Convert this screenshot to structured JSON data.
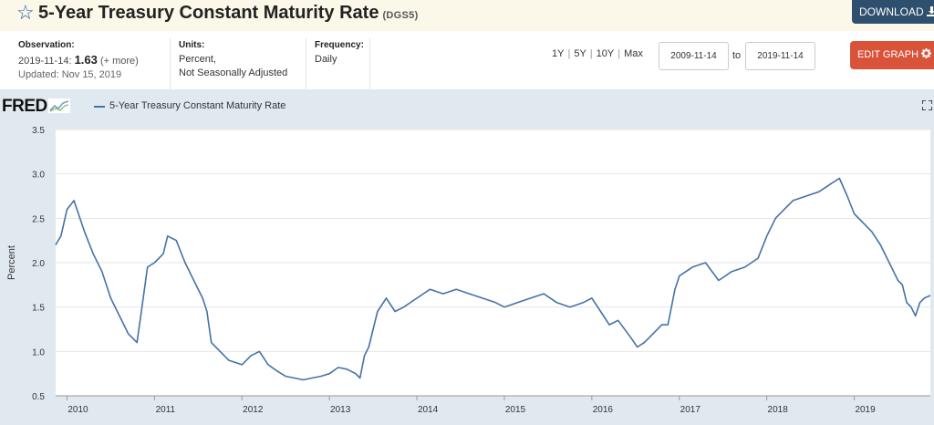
{
  "header": {
    "title": "5-Year Treasury Constant Maturity Rate",
    "series_id": "(DGS5)",
    "download_label": "DOWNLOAD",
    "star_icon": "star-outline-icon",
    "download_icon": "download-icon"
  },
  "meta": {
    "observation_label": "Observation:",
    "observation_date": "2019-11-14:",
    "observation_value": "1.63",
    "observation_more": "(+ more)",
    "updated": "Updated: Nov 15, 2019",
    "units_label": "Units:",
    "units_line1": "Percent,",
    "units_line2": "Not Seasonally Adjusted",
    "frequency_label": "Frequency:",
    "frequency_value": "Daily"
  },
  "controls": {
    "ranges": [
      "1Y",
      "5Y",
      "10Y",
      "Max"
    ],
    "start_date": "2009-11-14",
    "to_label": "to",
    "end_date": "2019-11-14",
    "edit_label": "EDIT GRAPH",
    "edit_icon": "gear-icon"
  },
  "graph": {
    "logo": "FRED",
    "logo_icon": "fred-chart-icon",
    "expand_icon": "expand-icon"
  },
  "chart_data": {
    "type": "line",
    "ylabel": "Percent",
    "ylim": [
      0.5,
      3.5
    ],
    "yticks": [
      "0.5",
      "1.0",
      "1.5",
      "2.0",
      "2.5",
      "3.0",
      "3.5"
    ],
    "xlim": [
      2009.87,
      2019.87
    ],
    "xticks": [
      "2010",
      "2011",
      "2012",
      "2013",
      "2014",
      "2015",
      "2016",
      "2017",
      "2018",
      "2019"
    ],
    "grid": "horizontal",
    "series": [
      {
        "name": "5-Year Treasury Constant Maturity Rate",
        "color": "#4572a7",
        "x": [
          2009.87,
          2009.93,
          2010.0,
          2010.08,
          2010.2,
          2010.3,
          2010.4,
          2010.5,
          2010.6,
          2010.7,
          2010.8,
          2010.85,
          2010.92,
          2011.0,
          2011.1,
          2011.15,
          2011.25,
          2011.35,
          2011.45,
          2011.55,
          2011.6,
          2011.65,
          2011.75,
          2011.85,
          2012.0,
          2012.1,
          2012.2,
          2012.3,
          2012.4,
          2012.5,
          2012.6,
          2012.7,
          2012.8,
          2012.9,
          2013.0,
          2013.1,
          2013.2,
          2013.3,
          2013.35,
          2013.4,
          2013.45,
          2013.55,
          2013.65,
          2013.75,
          2013.85,
          2014.0,
          2014.15,
          2014.3,
          2014.45,
          2014.6,
          2014.75,
          2014.9,
          2015.0,
          2015.15,
          2015.3,
          2015.45,
          2015.6,
          2015.75,
          2015.9,
          2016.0,
          2016.1,
          2016.2,
          2016.3,
          2016.45,
          2016.52,
          2016.6,
          2016.7,
          2016.8,
          2016.87,
          2016.95,
          2017.0,
          2017.15,
          2017.3,
          2017.45,
          2017.6,
          2017.75,
          2017.9,
          2018.0,
          2018.1,
          2018.2,
          2018.3,
          2018.45,
          2018.6,
          2018.75,
          2018.83,
          2018.92,
          2019.0,
          2019.1,
          2019.2,
          2019.3,
          2019.4,
          2019.45,
          2019.5,
          2019.55,
          2019.6,
          2019.65,
          2019.7,
          2019.75,
          2019.8,
          2019.87
        ],
        "values": [
          2.2,
          2.3,
          2.6,
          2.7,
          2.35,
          2.1,
          1.9,
          1.6,
          1.4,
          1.2,
          1.1,
          1.45,
          1.95,
          2.0,
          2.1,
          2.3,
          2.25,
          2.0,
          1.8,
          1.6,
          1.45,
          1.1,
          1.0,
          0.9,
          0.85,
          0.95,
          1.0,
          0.85,
          0.78,
          0.72,
          0.7,
          0.68,
          0.7,
          0.72,
          0.75,
          0.82,
          0.8,
          0.75,
          0.7,
          0.95,
          1.05,
          1.45,
          1.6,
          1.45,
          1.5,
          1.6,
          1.7,
          1.65,
          1.7,
          1.65,
          1.6,
          1.55,
          1.5,
          1.55,
          1.6,
          1.65,
          1.55,
          1.5,
          1.55,
          1.6,
          1.45,
          1.3,
          1.35,
          1.15,
          1.05,
          1.1,
          1.2,
          1.3,
          1.3,
          1.7,
          1.85,
          1.95,
          2.0,
          1.8,
          1.9,
          1.95,
          2.05,
          2.3,
          2.5,
          2.6,
          2.7,
          2.75,
          2.8,
          2.9,
          2.95,
          2.75,
          2.55,
          2.45,
          2.35,
          2.2,
          2.0,
          1.9,
          1.8,
          1.75,
          1.55,
          1.5,
          1.4,
          1.55,
          1.6,
          1.63
        ]
      }
    ]
  }
}
